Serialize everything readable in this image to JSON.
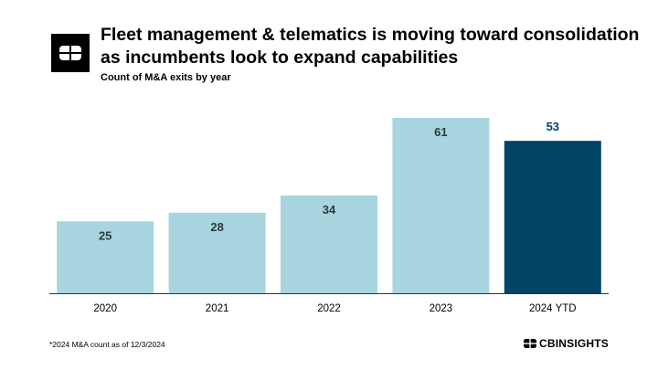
{
  "header": {
    "title": "Fleet management & telematics is moving toward consolidation as incumbents look to expand capabilities",
    "subtitle": "Count of M&A exits by year",
    "logo_icon": "cb-insights-logo-icon"
  },
  "chart_data": {
    "type": "bar",
    "title": "Fleet management & telematics is moving toward consolidation as incumbents look to expand capabilities",
    "subtitle": "Count of M&A exits by year",
    "xlabel": "",
    "ylabel": "",
    "categories": [
      "2020",
      "2021",
      "2022",
      "2023",
      "2024 YTD"
    ],
    "values": [
      25,
      28,
      34,
      61,
      53
    ],
    "ylim": [
      0,
      66
    ],
    "grid": false,
    "legend": "none",
    "colors": {
      "default_bar": "#a8d5df",
      "highlight_bar": "#004466",
      "default_label": "#2f3a40",
      "highlight_label": "#004466",
      "axis": "#333333",
      "tick_label": "#000000"
    },
    "highlight_index": 4
  },
  "footer": {
    "footnote": "*2024 M&A count as of 12/3/2024",
    "brand_prefix": "CB",
    "brand_suffix": "INSIGHTS",
    "brand_icon": "cb-insights-logo-icon"
  }
}
